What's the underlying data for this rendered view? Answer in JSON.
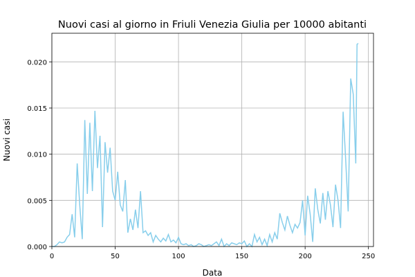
{
  "chart_data": {
    "type": "line",
    "title": "Nuovi casi al giorno in Friuli Venezia Giulia per 10000 abitanti",
    "x_label": "Data",
    "y_label": "Nuovi casi",
    "x": [
      0,
      2,
      4,
      6,
      8,
      10,
      12,
      14,
      16,
      18,
      20,
      22,
      24,
      26,
      28,
      30,
      32,
      34,
      36,
      38,
      40,
      42,
      44,
      46,
      48,
      50,
      52,
      54,
      56,
      58,
      60,
      62,
      64,
      66,
      68,
      70,
      72,
      74,
      76,
      78,
      80,
      82,
      84,
      86,
      88,
      90,
      92,
      94,
      96,
      98,
      100,
      102,
      104,
      106,
      108,
      110,
      112,
      114,
      116,
      118,
      120,
      122,
      124,
      126,
      128,
      130,
      132,
      134,
      136,
      138,
      140,
      142,
      144,
      146,
      148,
      150,
      152,
      154,
      156,
      158,
      160,
      162,
      164,
      166,
      168,
      170,
      172,
      174,
      176,
      178,
      180,
      182,
      184,
      186,
      188,
      190,
      192,
      194,
      196,
      198,
      200,
      202,
      204,
      206,
      208,
      210,
      212,
      214,
      216,
      218,
      220,
      222,
      224,
      226,
      228,
      230,
      232,
      234,
      236,
      238,
      240,
      241,
      242
    ],
    "series": [
      {
        "name": "Nuovi casi",
        "color": "#87ceeb",
        "values": [
          0,
          0,
          0.0002,
          0.0005,
          0.0004,
          0.0005,
          0.001,
          0.0013,
          0.0035,
          0.001,
          0.009,
          0.0045,
          0.0008,
          0.0137,
          0.0057,
          0.0134,
          0.006,
          0.0147,
          0.0085,
          0.012,
          0.0021,
          0.0113,
          0.008,
          0.0107,
          0.006,
          0.005,
          0.0081,
          0.0045,
          0.0038,
          0.0072,
          0.0015,
          0.003,
          0.0018,
          0.004,
          0.002,
          0.006,
          0.0015,
          0.0017,
          0.0012,
          0.0015,
          0.0005,
          0.0012,
          0.0008,
          0.0005,
          0.0009,
          0.0006,
          0.0013,
          0.0005,
          0.0007,
          0.0004,
          0.001,
          0.0003,
          0.0002,
          0.0003,
          0.0001,
          0.0002,
          0,
          0.0001,
          0.0003,
          0.0002,
          0,
          0.0001,
          0.0002,
          0.0001,
          0.0003,
          0.0005,
          0.0001,
          0.0008,
          0,
          0.0003,
          0.0001,
          0.0004,
          0.0003,
          0.0002,
          0.0004,
          0.0003,
          0.0006,
          0,
          0.0003,
          0,
          0.0013,
          0.0005,
          0.001,
          0.0002,
          0.0008,
          0.0001,
          0.0013,
          0.0005,
          0.0015,
          0.0008,
          0.0036,
          0.0026,
          0.0018,
          0.0033,
          0.0023,
          0.0015,
          0.0024,
          0.002,
          0.0026,
          0.005,
          0.0012,
          0.0055,
          0.0035,
          0.0005,
          0.0063,
          0.004,
          0.0025,
          0.0058,
          0.0029,
          0.006,
          0.0045,
          0.0021,
          0.0067,
          0.005,
          0.002,
          0.0146,
          0.0095,
          0.0038,
          0.0182,
          0.0165,
          0.009,
          0.0219,
          0.022
        ]
      }
    ],
    "xlim": [
      0,
      254
    ],
    "ylim": [
      0,
      0.0231
    ],
    "xticks": [
      0,
      50,
      100,
      150,
      200,
      250
    ],
    "yticks": [
      {
        "value": 0,
        "label": "0.000"
      },
      {
        "value": 0.005,
        "label": "0.005"
      },
      {
        "value": 0.01,
        "label": "0.010"
      },
      {
        "value": 0.015,
        "label": "0.015"
      },
      {
        "value": 0.02,
        "label": "0.020"
      }
    ],
    "grid": true
  }
}
